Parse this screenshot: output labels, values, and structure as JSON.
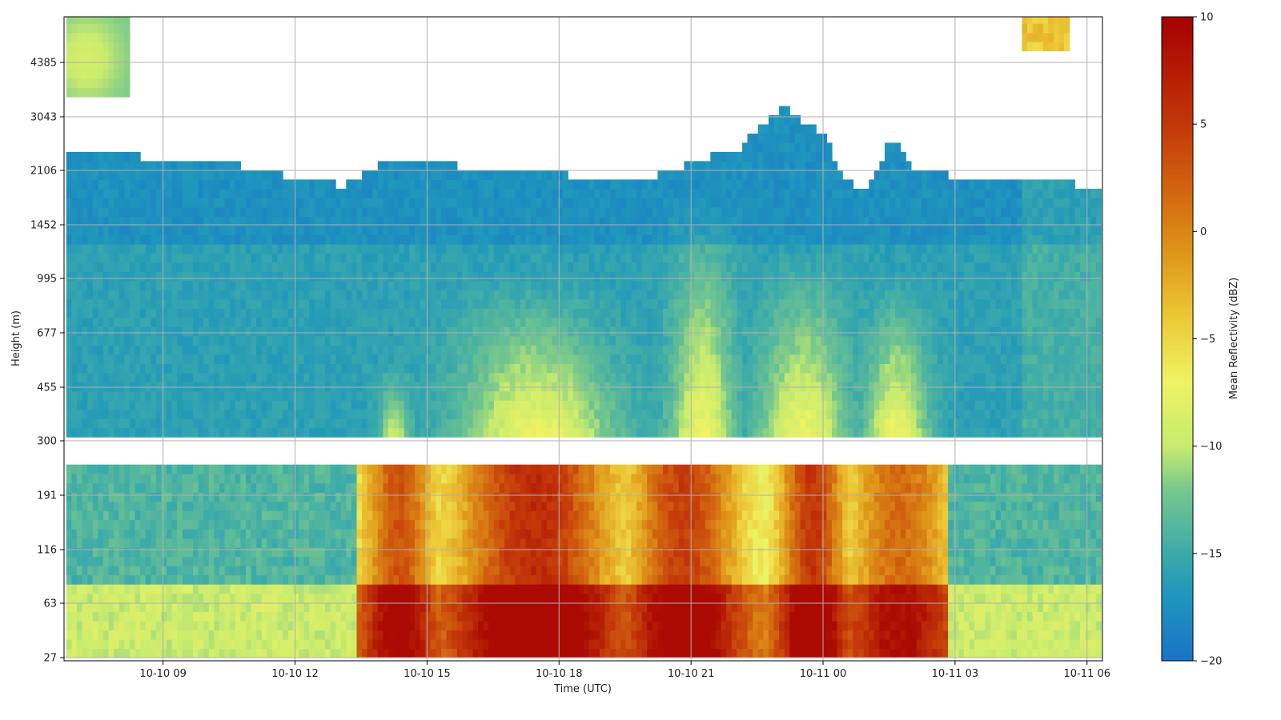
{
  "chart_data": {
    "type": "heatmap",
    "title": "",
    "xlabel": "Time (UTC)",
    "ylabel": "Height (m)",
    "x_ticks": [
      "10-10 09",
      "10-10 12",
      "10-10 15",
      "10-10 18",
      "10-10 21",
      "10-11 00",
      "10-11 03",
      "10-11 06"
    ],
    "y_ticks": [
      "27",
      "63",
      "116",
      "191",
      "300",
      "455",
      "677",
      "995",
      "1452",
      "2106",
      "3043",
      "4385"
    ],
    "grid": true,
    "colorbar": {
      "label": "Mean Reflectivity (dBZ)",
      "min": -20,
      "max": 10,
      "ticks": [
        "−20",
        "−15",
        "−10",
        "−5",
        "0",
        "5",
        "10"
      ],
      "colors": [
        "#1a73c9",
        "#1f9cb8",
        "#49b3a6",
        "#a6dd79",
        "#eef36a",
        "#e3b72d",
        "#d07a12",
        "#c23e0c",
        "#a50000"
      ]
    },
    "x_range_hours_since_2024_10_10_00": [
      6.8,
      30.2
    ],
    "description_note": "Approximate field of mean reflectivity vs time (columns) and height-row index (rows)."
  }
}
